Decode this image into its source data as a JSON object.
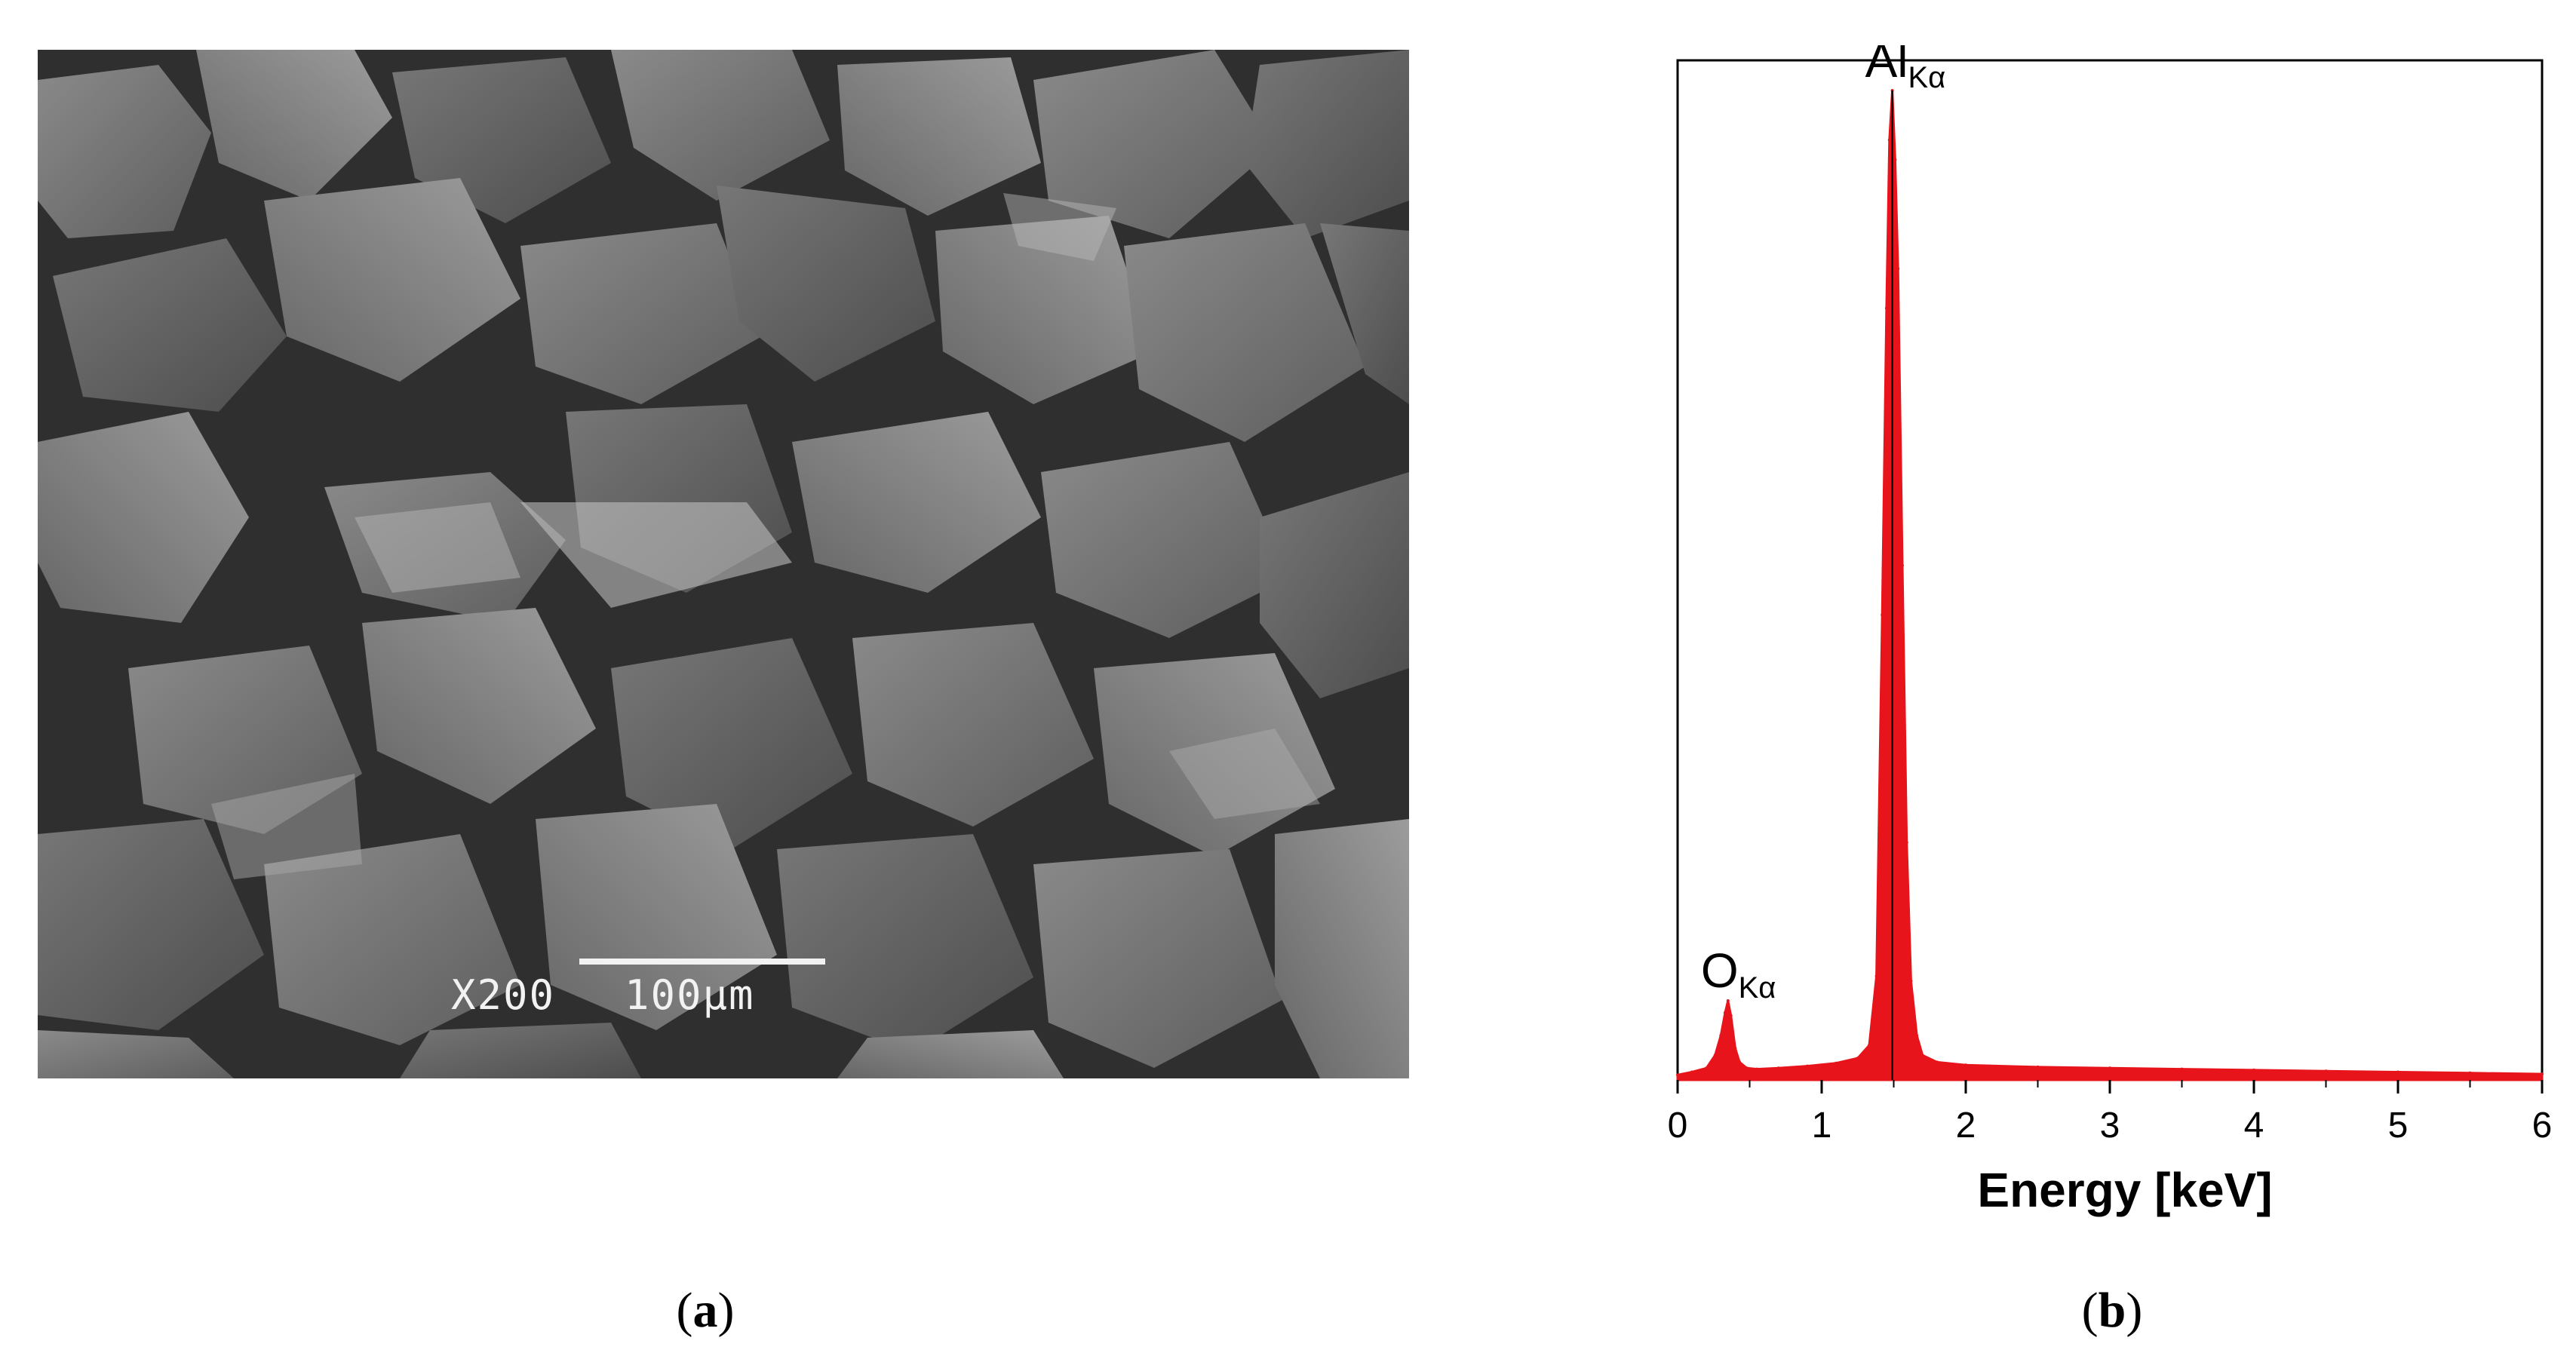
{
  "figure": {
    "panel_a": {
      "caption_letter": "a",
      "micrograph_label": {
        "magnification": "X200",
        "scale_text": "100µm"
      },
      "colors": {
        "background": "#595959",
        "scale_bar": "#f2f2f2"
      }
    },
    "panel_b": {
      "caption_letter": "b"
    }
  },
  "chart_data": {
    "type": "area",
    "xlabel": "Energy [keV]",
    "ylabel": "",
    "xlim": [
      0,
      6
    ],
    "ylim": [
      0,
      100
    ],
    "x_ticks": [
      "0",
      "1",
      "2",
      "3",
      "4",
      "5",
      "6"
    ],
    "grid": false,
    "series": [
      {
        "color": "#e8141b",
        "x": [
          0,
          0.1,
          0.2,
          0.26,
          0.3,
          0.33,
          0.35,
          0.37,
          0.4,
          0.43,
          0.48,
          0.55,
          0.7,
          0.9,
          1.1,
          1.25,
          1.33,
          1.38,
          1.42,
          1.45,
          1.47,
          1.49,
          1.51,
          1.53,
          1.56,
          1.59,
          1.62,
          1.66,
          1.7,
          1.8,
          2.0,
          2.5,
          3.0,
          3.5,
          4.0,
          4.5,
          5.0,
          5.5,
          6.0
        ],
        "y": [
          0.5,
          0.8,
          1.2,
          2.5,
          4.5,
          6.8,
          8.0,
          6.5,
          3.2,
          1.8,
          1.2,
          1.1,
          1.2,
          1.4,
          1.7,
          2.2,
          3.5,
          10.5,
          47.0,
          78.0,
          95.0,
          100.0,
          93.0,
          82.0,
          52.0,
          24.0,
          10.0,
          4.5,
          2.5,
          1.8,
          1.5,
          1.3,
          1.2,
          1.1,
          1.0,
          0.9,
          0.8,
          0.7,
          0.6
        ]
      }
    ],
    "annotations": [
      {
        "element": "O",
        "line": "Kα",
        "x": 0.35
      },
      {
        "element": "Al",
        "line": "Kα",
        "x": 1.49
      }
    ]
  }
}
